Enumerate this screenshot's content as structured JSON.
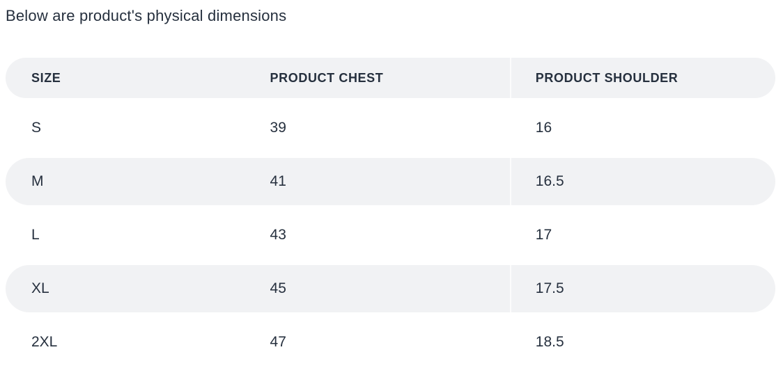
{
  "section": {
    "title": "Below are product's physical dimensions"
  },
  "table": {
    "columns": [
      "SIZE",
      "PRODUCT CHEST",
      "PRODUCT SHOULDER"
    ],
    "rows": [
      {
        "size": "S",
        "chest": "39",
        "shoulder": "16"
      },
      {
        "size": "M",
        "chest": "41",
        "shoulder": "16.5"
      },
      {
        "size": "L",
        "chest": "43",
        "shoulder": "17"
      },
      {
        "size": "XL",
        "chest": "45",
        "shoulder": "17.5"
      },
      {
        "size": "2XL",
        "chest": "47",
        "shoulder": "18.5"
      }
    ],
    "highlighted_rows": [
      "M",
      "XL"
    ]
  },
  "colors": {
    "text": "#26303e",
    "row_highlight_bg": "#f1f2f4",
    "page_bg": "#ffffff"
  }
}
